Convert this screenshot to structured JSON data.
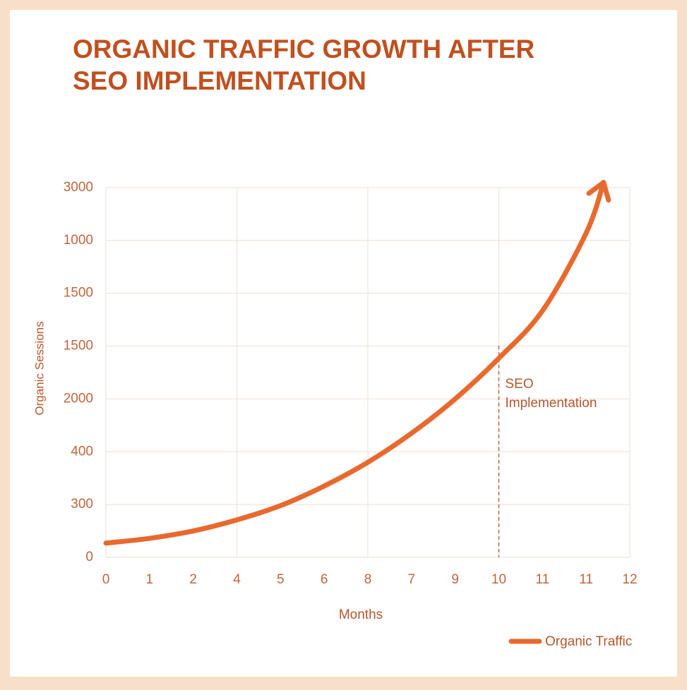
{
  "chart_data": {
    "type": "line",
    "title": [
      "ORGANIC TRAFFIC GROWTH AFTER",
      "SEO IMPLEMENTATION"
    ],
    "x_label": "Months",
    "y_label": "Organic Sessions",
    "xlim": [
      0,
      12
    ],
    "xticks": [
      0,
      1,
      2,
      {
        "value": 3,
        "label": "4"
      },
      {
        "value": 4,
        "label": "5"
      },
      {
        "value": 5,
        "label": "6"
      },
      {
        "value": 6,
        "label": "8"
      },
      {
        "value": 7,
        "label": "7"
      },
      {
        "value": 8,
        "label": "9"
      },
      {
        "value": 9,
        "label": "10"
      },
      {
        "value": 10,
        "label": "11"
      },
      {
        "value": 11,
        "label": "11"
      },
      12
    ],
    "ylim": [
      0,
      7
    ],
    "yticks": [
      0,
      {
        "value": 1,
        "label": "300"
      },
      {
        "value": 2,
        "label": "400"
      },
      {
        "value": 3,
        "label": "2000"
      },
      {
        "value": 4,
        "label": "1500"
      },
      {
        "value": 5,
        "label": "1500"
      },
      {
        "value": 6,
        "label": "1000"
      },
      {
        "value": 7,
        "label": "3000"
      }
    ],
    "grid": true,
    "series": [
      {
        "name": "Organic Traffic",
        "color": "#e8692e",
        "x": [
          0,
          1,
          2,
          3,
          4,
          5,
          6,
          7,
          8,
          9,
          10,
          11,
          11.4
        ],
        "values": [
          0.27,
          0.36,
          0.5,
          0.71,
          0.98,
          1.35,
          1.8,
          2.35,
          3.0,
          3.77,
          4.67,
          6.14,
          7.1
        ]
      }
    ],
    "annotation": {
      "x": 9,
      "text": [
        "SEO",
        "Implementation"
      ]
    },
    "legend": "lower right"
  }
}
